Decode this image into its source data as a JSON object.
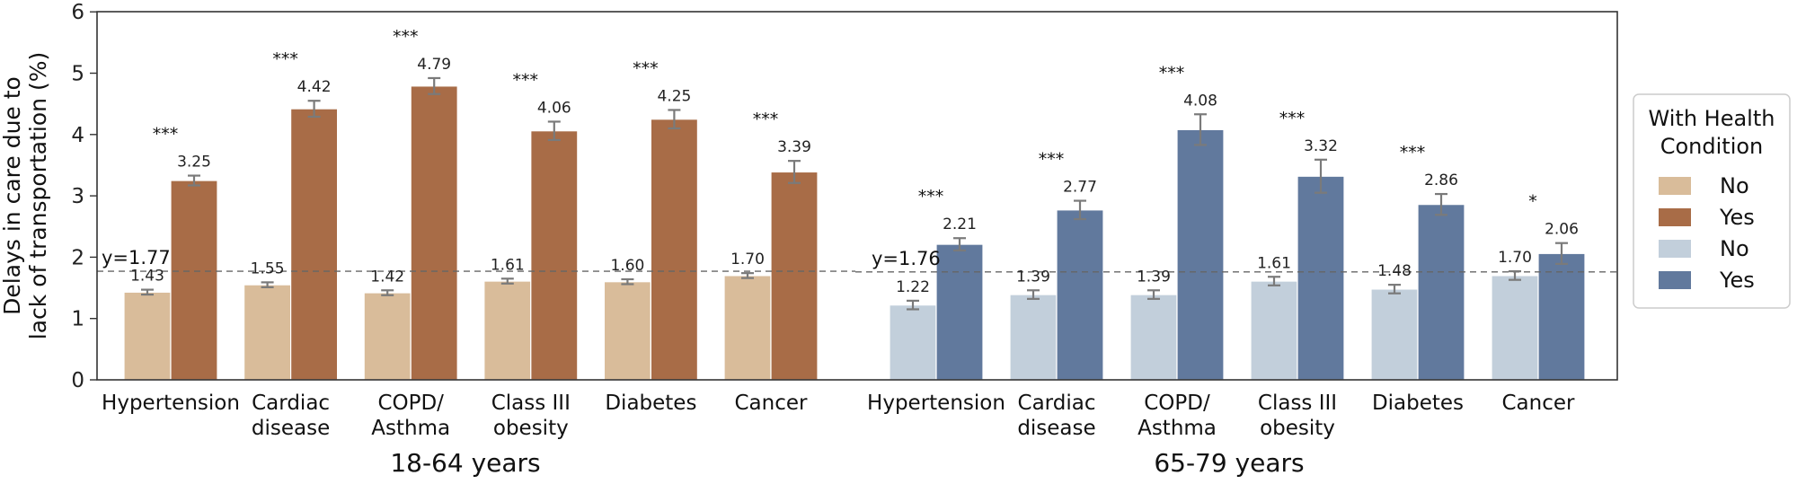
{
  "chart_data": {
    "type": "bar",
    "ylabel_lines": [
      "Delays in care due to",
      "lack of transportation (%)"
    ],
    "ylim": [
      0,
      6
    ],
    "yticks": [
      "0",
      "1",
      "2",
      "3",
      "4",
      "5",
      "6"
    ],
    "grid": false,
    "legend": {
      "placement": "right",
      "title_lines": [
        "With Health",
        "Condition"
      ],
      "entries": [
        {
          "label": "No",
          "color": "#d9bc9a"
        },
        {
          "label": "Yes",
          "color": "#a86c47"
        },
        {
          "label": "No",
          "color": "#c2cfdb"
        },
        {
          "label": "Yes",
          "color": "#61799d"
        }
      ]
    },
    "groups": [
      {
        "name": "18-64 years",
        "reference_label": "y=1.77",
        "reference_value": 1.77,
        "colors": {
          "no": "#d9bc9a",
          "yes": "#a86c47"
        },
        "categories": [
          {
            "lines": [
              "Hypertension"
            ],
            "no": 1.43,
            "no_label": "1.43",
            "no_err": 0.04,
            "yes": 3.25,
            "yes_label": "3.25",
            "yes_err": 0.08,
            "sig": "***"
          },
          {
            "lines": [
              "Cardiac",
              "disease"
            ],
            "no": 1.55,
            "no_label": "1.55",
            "no_err": 0.04,
            "yes": 4.42,
            "yes_label": "4.42",
            "yes_err": 0.13,
            "sig": "***"
          },
          {
            "lines": [
              "COPD/",
              "Asthma"
            ],
            "no": 1.42,
            "no_label": "1.42",
            "no_err": 0.04,
            "yes": 4.79,
            "yes_label": "4.79",
            "yes_err": 0.13,
            "sig": "***"
          },
          {
            "lines": [
              "Class III",
              "obesity"
            ],
            "no": 1.61,
            "no_label": "1.61",
            "no_err": 0.04,
            "yes": 4.06,
            "yes_label": "4.06",
            "yes_err": 0.15,
            "sig": "***"
          },
          {
            "lines": [
              "Diabetes"
            ],
            "no": 1.6,
            "no_label": "1.60",
            "no_err": 0.04,
            "yes": 4.25,
            "yes_label": "4.25",
            "yes_err": 0.15,
            "sig": "***"
          },
          {
            "lines": [
              "Cancer"
            ],
            "no": 1.7,
            "no_label": "1.70",
            "no_err": 0.04,
            "yes": 3.39,
            "yes_label": "3.39",
            "yes_err": 0.18,
            "sig": "***"
          }
        ]
      },
      {
        "name": "65-79 years",
        "reference_label": "y=1.76",
        "reference_value": 1.76,
        "colors": {
          "no": "#c2cfdb",
          "yes": "#61799d"
        },
        "categories": [
          {
            "lines": [
              "Hypertension"
            ],
            "no": 1.22,
            "no_label": "1.22",
            "no_err": 0.07,
            "yes": 2.21,
            "yes_label": "2.21",
            "yes_err": 0.1,
            "sig": "***"
          },
          {
            "lines": [
              "Cardiac",
              "disease"
            ],
            "no": 1.39,
            "no_label": "1.39",
            "no_err": 0.07,
            "yes": 2.77,
            "yes_label": "2.77",
            "yes_err": 0.15,
            "sig": "***"
          },
          {
            "lines": [
              "COPD/",
              "Asthma"
            ],
            "no": 1.39,
            "no_label": "1.39",
            "no_err": 0.07,
            "yes": 4.08,
            "yes_label": "4.08",
            "yes_err": 0.25,
            "sig": "***"
          },
          {
            "lines": [
              "Class III",
              "obesity"
            ],
            "no": 1.61,
            "no_label": "1.61",
            "no_err": 0.07,
            "yes": 3.32,
            "yes_label": "3.32",
            "yes_err": 0.27,
            "sig": "***"
          },
          {
            "lines": [
              "Diabetes"
            ],
            "no": 1.48,
            "no_label": "1.48",
            "no_err": 0.07,
            "yes": 2.86,
            "yes_label": "2.86",
            "yes_err": 0.17,
            "sig": "***"
          },
          {
            "lines": [
              "Cancer"
            ],
            "no": 1.7,
            "no_label": "1.70",
            "no_err": 0.07,
            "yes": 2.06,
            "yes_label": "2.06",
            "yes_err": 0.17,
            "sig": "*"
          }
        ]
      }
    ]
  }
}
